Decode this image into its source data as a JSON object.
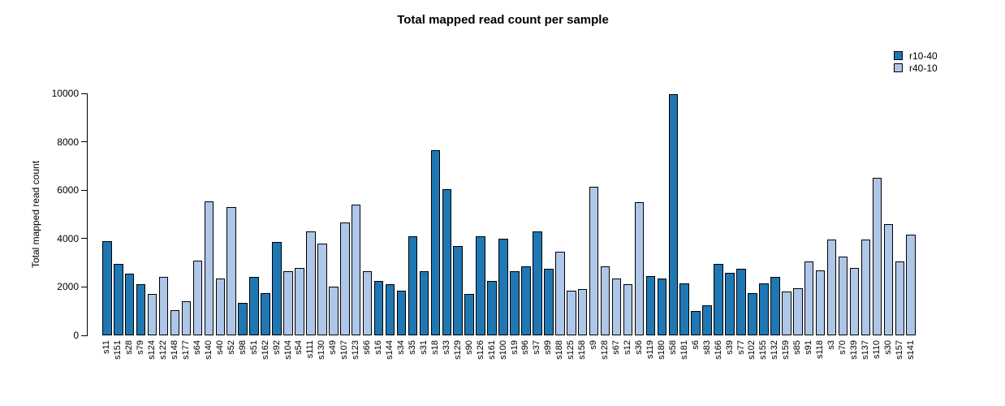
{
  "chart_data": {
    "type": "bar",
    "title": "Total mapped read count per sample",
    "xlabel": "",
    "ylabel": "Total mapped read count",
    "ylim": [
      0,
      10000
    ],
    "yticks": [
      0,
      2000,
      4000,
      6000,
      8000,
      10000
    ],
    "grid": false,
    "legend_position": "top-right",
    "legend": [
      {
        "name": "r10-40",
        "color": "#1F77B4"
      },
      {
        "name": "r40-10",
        "color": "#AEC7E8"
      }
    ],
    "samples": [
      {
        "label": "s11",
        "group": "r10-40",
        "value": 3900
      },
      {
        "label": "s151",
        "group": "r10-40",
        "value": 2950
      },
      {
        "label": "s28",
        "group": "r10-40",
        "value": 2550
      },
      {
        "label": "s79",
        "group": "r10-40",
        "value": 2100
      },
      {
        "label": "s124",
        "group": "r40-10",
        "value": 1700
      },
      {
        "label": "s122",
        "group": "r40-10",
        "value": 2400
      },
      {
        "label": "s148",
        "group": "r40-10",
        "value": 1050
      },
      {
        "label": "s177",
        "group": "r40-10",
        "value": 1400
      },
      {
        "label": "s64",
        "group": "r40-10",
        "value": 3100
      },
      {
        "label": "s140",
        "group": "r40-10",
        "value": 5550
      },
      {
        "label": "s40",
        "group": "r40-10",
        "value": 2350
      },
      {
        "label": "s52",
        "group": "r40-10",
        "value": 5300
      },
      {
        "label": "s98",
        "group": "r10-40",
        "value": 1350
      },
      {
        "label": "s51",
        "group": "r10-40",
        "value": 2400
      },
      {
        "label": "s162",
        "group": "r10-40",
        "value": 1750
      },
      {
        "label": "s92",
        "group": "r10-40",
        "value": 3850
      },
      {
        "label": "s104",
        "group": "r40-10",
        "value": 2650
      },
      {
        "label": "s54",
        "group": "r40-10",
        "value": 2800
      },
      {
        "label": "s111",
        "group": "r40-10",
        "value": 4300
      },
      {
        "label": "s130",
        "group": "r40-10",
        "value": 3800
      },
      {
        "label": "s49",
        "group": "r40-10",
        "value": 2000
      },
      {
        "label": "s107",
        "group": "r40-10",
        "value": 4650
      },
      {
        "label": "s123",
        "group": "r40-10",
        "value": 5400
      },
      {
        "label": "s66",
        "group": "r40-10",
        "value": 2650
      },
      {
        "label": "s16",
        "group": "r10-40",
        "value": 2250
      },
      {
        "label": "s144",
        "group": "r10-40",
        "value": 2100
      },
      {
        "label": "s34",
        "group": "r10-40",
        "value": 1850
      },
      {
        "label": "s35",
        "group": "r10-40",
        "value": 4100
      },
      {
        "label": "s31",
        "group": "r10-40",
        "value": 2650
      },
      {
        "label": "s18",
        "group": "r10-40",
        "value": 7650
      },
      {
        "label": "s33",
        "group": "r10-40",
        "value": 6050
      },
      {
        "label": "s129",
        "group": "r10-40",
        "value": 3700
      },
      {
        "label": "s90",
        "group": "r10-40",
        "value": 1700
      },
      {
        "label": "s126",
        "group": "r10-40",
        "value": 4100
      },
      {
        "label": "s161",
        "group": "r10-40",
        "value": 2250
      },
      {
        "label": "s100",
        "group": "r10-40",
        "value": 4000
      },
      {
        "label": "s19",
        "group": "r10-40",
        "value": 2650
      },
      {
        "label": "s96",
        "group": "r10-40",
        "value": 2850
      },
      {
        "label": "s37",
        "group": "r10-40",
        "value": 4300
      },
      {
        "label": "s99",
        "group": "r10-40",
        "value": 2750
      },
      {
        "label": "s188",
        "group": "r40-10",
        "value": 3450
      },
      {
        "label": "s125",
        "group": "r40-10",
        "value": 1850
      },
      {
        "label": "s158",
        "group": "r40-10",
        "value": 1900
      },
      {
        "label": "s9",
        "group": "r40-10",
        "value": 6150
      },
      {
        "label": "s128",
        "group": "r40-10",
        "value": 2850
      },
      {
        "label": "s67",
        "group": "r40-10",
        "value": 2350
      },
      {
        "label": "s12",
        "group": "r40-10",
        "value": 2100
      },
      {
        "label": "s36",
        "group": "r40-10",
        "value": 5500
      },
      {
        "label": "s119",
        "group": "r10-40",
        "value": 2450
      },
      {
        "label": "s180",
        "group": "r10-40",
        "value": 2350
      },
      {
        "label": "s58",
        "group": "r10-40",
        "value": 9950
      },
      {
        "label": "s181",
        "group": "r10-40",
        "value": 2150
      },
      {
        "label": "s6",
        "group": "r10-40",
        "value": 1000
      },
      {
        "label": "s83",
        "group": "r10-40",
        "value": 1250
      },
      {
        "label": "s166",
        "group": "r10-40",
        "value": 2950
      },
      {
        "label": "s39",
        "group": "r10-40",
        "value": 2600
      },
      {
        "label": "s77",
        "group": "r10-40",
        "value": 2750
      },
      {
        "label": "s102",
        "group": "r10-40",
        "value": 1750
      },
      {
        "label": "s155",
        "group": "r10-40",
        "value": 2150
      },
      {
        "label": "s132",
        "group": "r10-40",
        "value": 2400
      },
      {
        "label": "s159",
        "group": "r40-10",
        "value": 1800
      },
      {
        "label": "s85",
        "group": "r40-10",
        "value": 1950
      },
      {
        "label": "s91",
        "group": "r40-10",
        "value": 3050
      },
      {
        "label": "s118",
        "group": "r40-10",
        "value": 2700
      },
      {
        "label": "s3",
        "group": "r40-10",
        "value": 3950
      },
      {
        "label": "s70",
        "group": "r40-10",
        "value": 3250
      },
      {
        "label": "s139",
        "group": "r40-10",
        "value": 2800
      },
      {
        "label": "s137",
        "group": "r40-10",
        "value": 3950
      },
      {
        "label": "s110",
        "group": "r40-10",
        "value": 6500
      },
      {
        "label": "s30",
        "group": "r40-10",
        "value": 4600
      },
      {
        "label": "s157",
        "group": "r40-10",
        "value": 3050
      },
      {
        "label": "s141",
        "group": "r40-10",
        "value": 4150
      }
    ]
  }
}
